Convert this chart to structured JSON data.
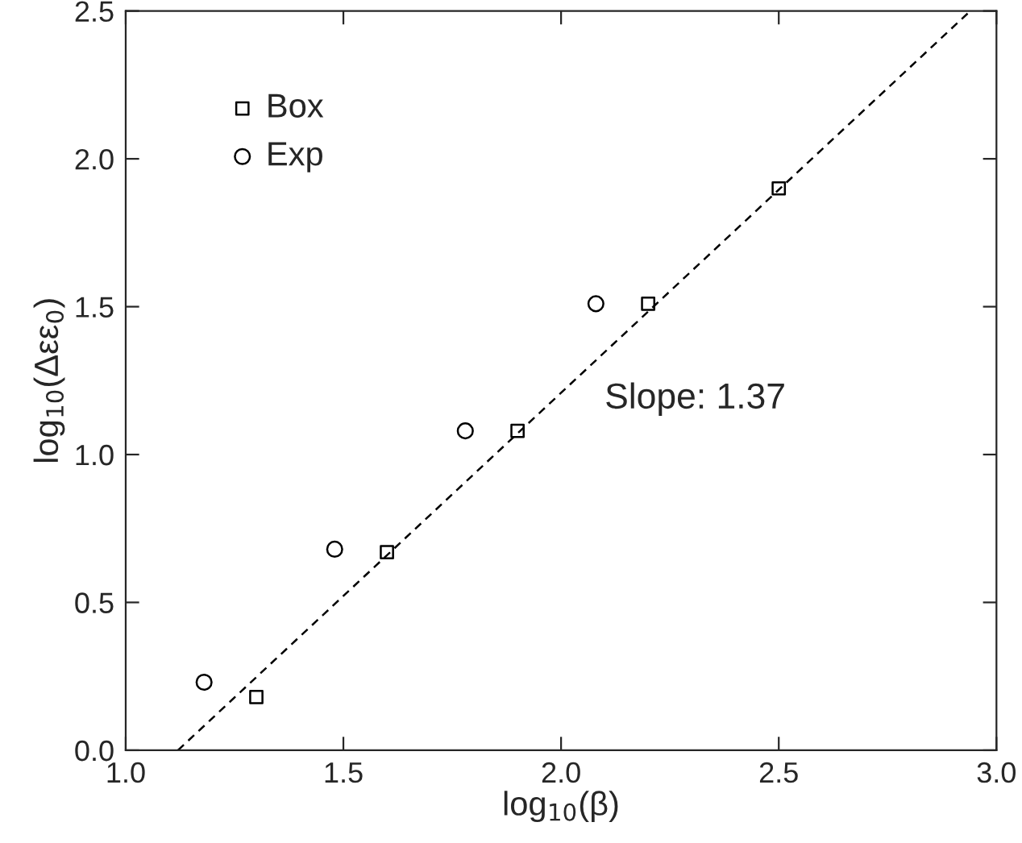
{
  "chart_data": {
    "type": "scatter",
    "xlabel": "log$_{10}$(β)",
    "ylabel": "log$_{10}$(Δεε$_{0}$)",
    "series": [
      {
        "name": "Box",
        "color": "#000000",
        "marker": "square",
        "x": [
          1.3,
          1.6,
          1.9,
          2.2,
          2.5
        ],
        "values": [
          0.18,
          0.67,
          1.08,
          1.51,
          1.9
        ]
      },
      {
        "name": "Exp",
        "color": "#000000",
        "marker": "circle",
        "x": [
          1.18,
          1.48,
          1.78,
          2.08
        ],
        "values": [
          0.23,
          0.68,
          1.08,
          1.51
        ]
      },
      {
        "type": "line",
        "color": "#000000",
        "line_style": "dashed",
        "marker": "none",
        "x": [
          1.12,
          2.94
        ],
        "values": [
          0.0,
          2.5
        ]
      }
    ],
    "annotations": [
      "Slope: 1.37"
    ],
    "xlim": [
      1.0,
      3.0
    ],
    "xticks": [
      {
        "value": 1.0,
        "label": "1.0"
      },
      {
        "value": 1.5,
        "label": "1.5"
      },
      {
        "value": 2.0,
        "label": "2.0"
      },
      {
        "value": 2.5,
        "label": "2.5"
      },
      {
        "value": 3.0,
        "label": "3.0"
      }
    ],
    "ylim": [
      0.0,
      2.5
    ],
    "yticks": [
      {
        "value": 0.0,
        "label": "0.0"
      },
      {
        "value": 0.5,
        "label": "0.5"
      },
      {
        "value": 1.0,
        "label": "1.0"
      },
      {
        "value": 1.5,
        "label": "1.5"
      },
      {
        "value": 2.0,
        "label": "2.0"
      },
      {
        "value": 2.5,
        "label": "2.5"
      }
    ],
    "legend": "top left",
    "grid": false
  }
}
